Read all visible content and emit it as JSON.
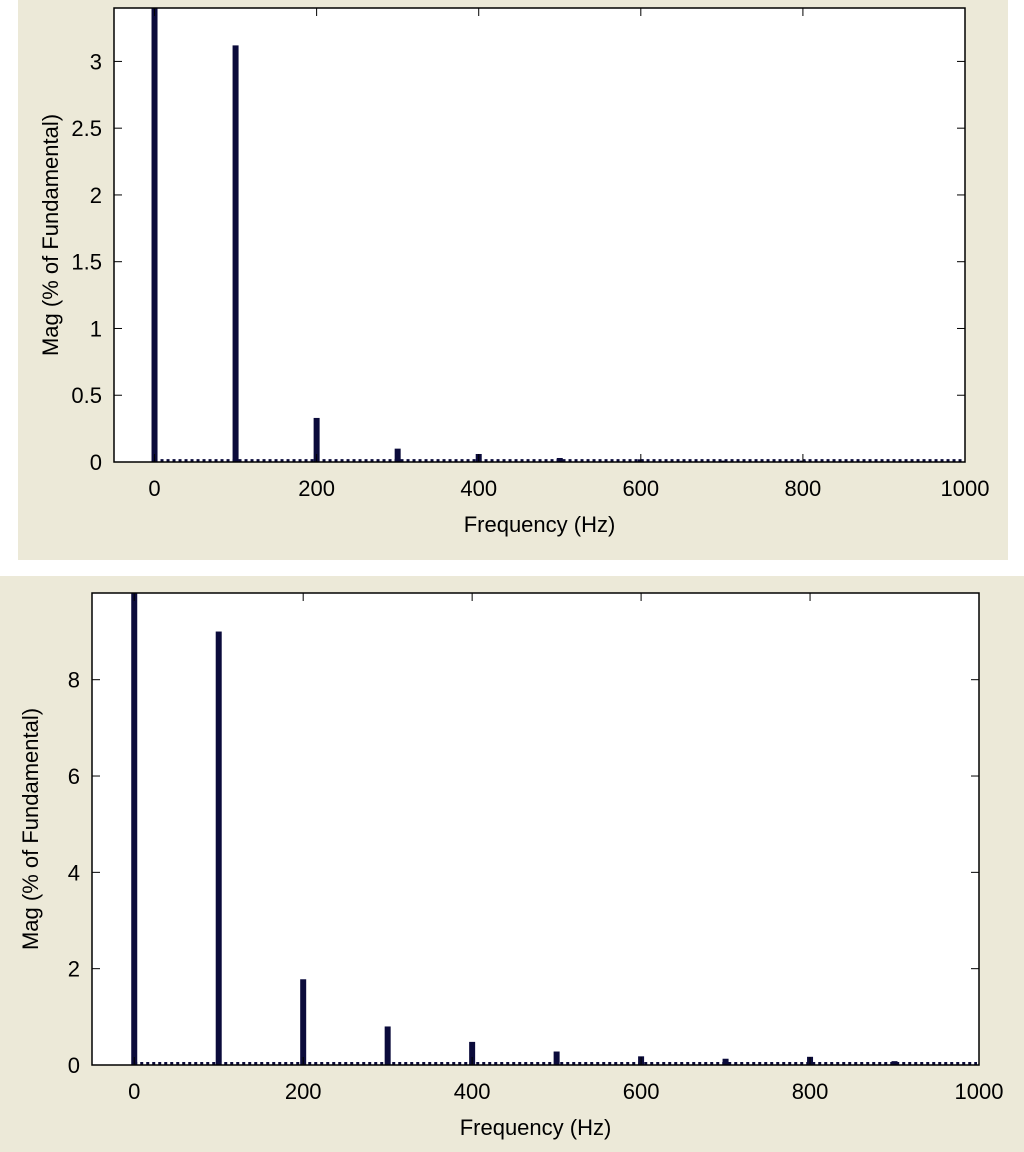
{
  "chart_data": [
    {
      "type": "bar",
      "xlabel": "Frequency (Hz)",
      "ylabel": "Mag (% of Fundamental)",
      "xlim": [
        -50,
        1000
      ],
      "ylim": [
        0,
        3.4
      ],
      "xticks": [
        0,
        200,
        400,
        600,
        800,
        1000
      ],
      "xtick_labels": [
        "0",
        "200",
        "400",
        "600",
        "800",
        "1000"
      ],
      "yticks": [
        0,
        0.5,
        1,
        1.5,
        2,
        2.5,
        3
      ],
      "ytick_labels": [
        "0",
        "0.5",
        "1",
        "1.5",
        "2",
        "2.5",
        "3"
      ],
      "grid": false,
      "bar_color": "#0b0b3b",
      "x": [
        0,
        100,
        200,
        300,
        400,
        500,
        600,
        700,
        800
      ],
      "values": [
        3.4,
        3.12,
        0.33,
        0.1,
        0.06,
        0.03,
        0.02,
        0.01,
        0.01
      ],
      "baseline_value": 0.01
    },
    {
      "type": "bar",
      "xlabel": "Frequency (Hz)",
      "ylabel": "Mag (% of Fundamental)",
      "xlim": [
        -50,
        1000
      ],
      "ylim": [
        0,
        9.8
      ],
      "xticks": [
        0,
        200,
        400,
        600,
        800,
        1000
      ],
      "xtick_labels": [
        "0",
        "200",
        "400",
        "600",
        "800",
        "1000"
      ],
      "yticks": [
        0,
        2,
        4,
        6,
        8
      ],
      "ytick_labels": [
        "0",
        "2",
        "4",
        "6",
        "8"
      ],
      "grid": false,
      "bar_color": "#0b0b3b",
      "x": [
        0,
        100,
        200,
        300,
        400,
        500,
        600,
        700,
        800,
        900
      ],
      "values": [
        9.8,
        9.0,
        1.78,
        0.8,
        0.48,
        0.28,
        0.18,
        0.13,
        0.17,
        0.08
      ],
      "baseline_value": 0.03
    }
  ]
}
